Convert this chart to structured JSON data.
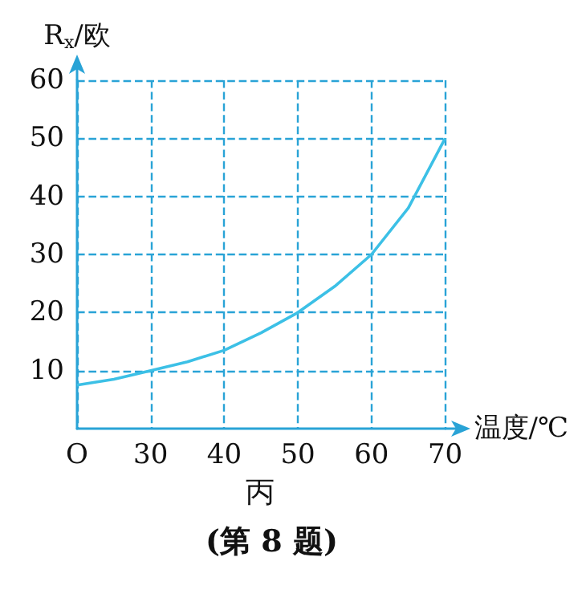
{
  "chart_data": {
    "type": "line",
    "xlabel": "温度/℃",
    "ylabel": "R$_{x}$/欧",
    "annotations": [
      "丙",
      "(第 8 题)"
    ],
    "x": [
      20,
      25,
      30,
      35,
      40,
      45,
      50,
      55,
      60,
      65,
      70
    ],
    "series": [
      {
        "color": "#3cc0e6",
        "values": [
          7.5,
          8.5,
          10,
          11.5,
          13.5,
          16.5,
          20,
          24.5,
          30,
          38,
          50
        ]
      }
    ],
    "xlim": [
      20,
      70
    ],
    "xticks": [
      {
        "value": 20,
        "label": "O"
      },
      30,
      40,
      50,
      60,
      70
    ],
    "ylim": [
      0,
      60
    ],
    "yticks": [
      10,
      20,
      30,
      40,
      50,
      60
    ],
    "grid": true,
    "marker": "none",
    "line_style": "solid"
  }
}
